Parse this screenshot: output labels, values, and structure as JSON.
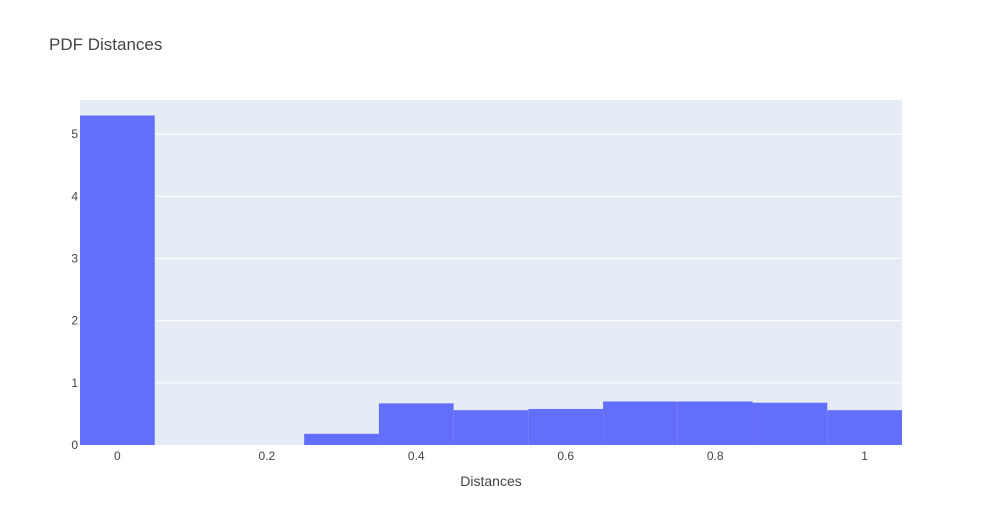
{
  "chart_data": {
    "type": "bar",
    "title": "PDF Distances",
    "xlabel": "Distances",
    "ylabel": "",
    "xlim": [
      -0.05,
      1.05
    ],
    "ylim": [
      0,
      5.55
    ],
    "grid": true,
    "bar_color": "#636efa",
    "plot_bg": "#e5ecf6",
    "grid_color": "#ffffff",
    "bins": [
      {
        "x0": -0.05,
        "x1": 0.05,
        "value": 5.3
      },
      {
        "x0": 0.05,
        "x1": 0.15,
        "value": 0
      },
      {
        "x0": 0.15,
        "x1": 0.25,
        "value": 0
      },
      {
        "x0": 0.25,
        "x1": 0.35,
        "value": 0.18
      },
      {
        "x0": 0.35,
        "x1": 0.45,
        "value": 0.67
      },
      {
        "x0": 0.45,
        "x1": 0.55,
        "value": 0.56
      },
      {
        "x0": 0.55,
        "x1": 0.65,
        "value": 0.58
      },
      {
        "x0": 0.65,
        "x1": 0.75,
        "value": 0.7
      },
      {
        "x0": 0.75,
        "x1": 0.85,
        "value": 0.7
      },
      {
        "x0": 0.85,
        "x1": 0.95,
        "value": 0.68
      },
      {
        "x0": 0.95,
        "x1": 1.05,
        "value": 0.56
      }
    ],
    "x_ticks": [
      {
        "value": 0,
        "label": "0"
      },
      {
        "value": 0.2,
        "label": "0.2"
      },
      {
        "value": 0.4,
        "label": "0.4"
      },
      {
        "value": 0.6,
        "label": "0.6"
      },
      {
        "value": 0.8,
        "label": "0.8"
      },
      {
        "value": 1,
        "label": "1"
      }
    ],
    "y_ticks": [
      {
        "value": 0,
        "label": "0"
      },
      {
        "value": 1,
        "label": "1"
      },
      {
        "value": 2,
        "label": "2"
      },
      {
        "value": 3,
        "label": "3"
      },
      {
        "value": 4,
        "label": "4"
      },
      {
        "value": 5,
        "label": "5"
      }
    ]
  }
}
